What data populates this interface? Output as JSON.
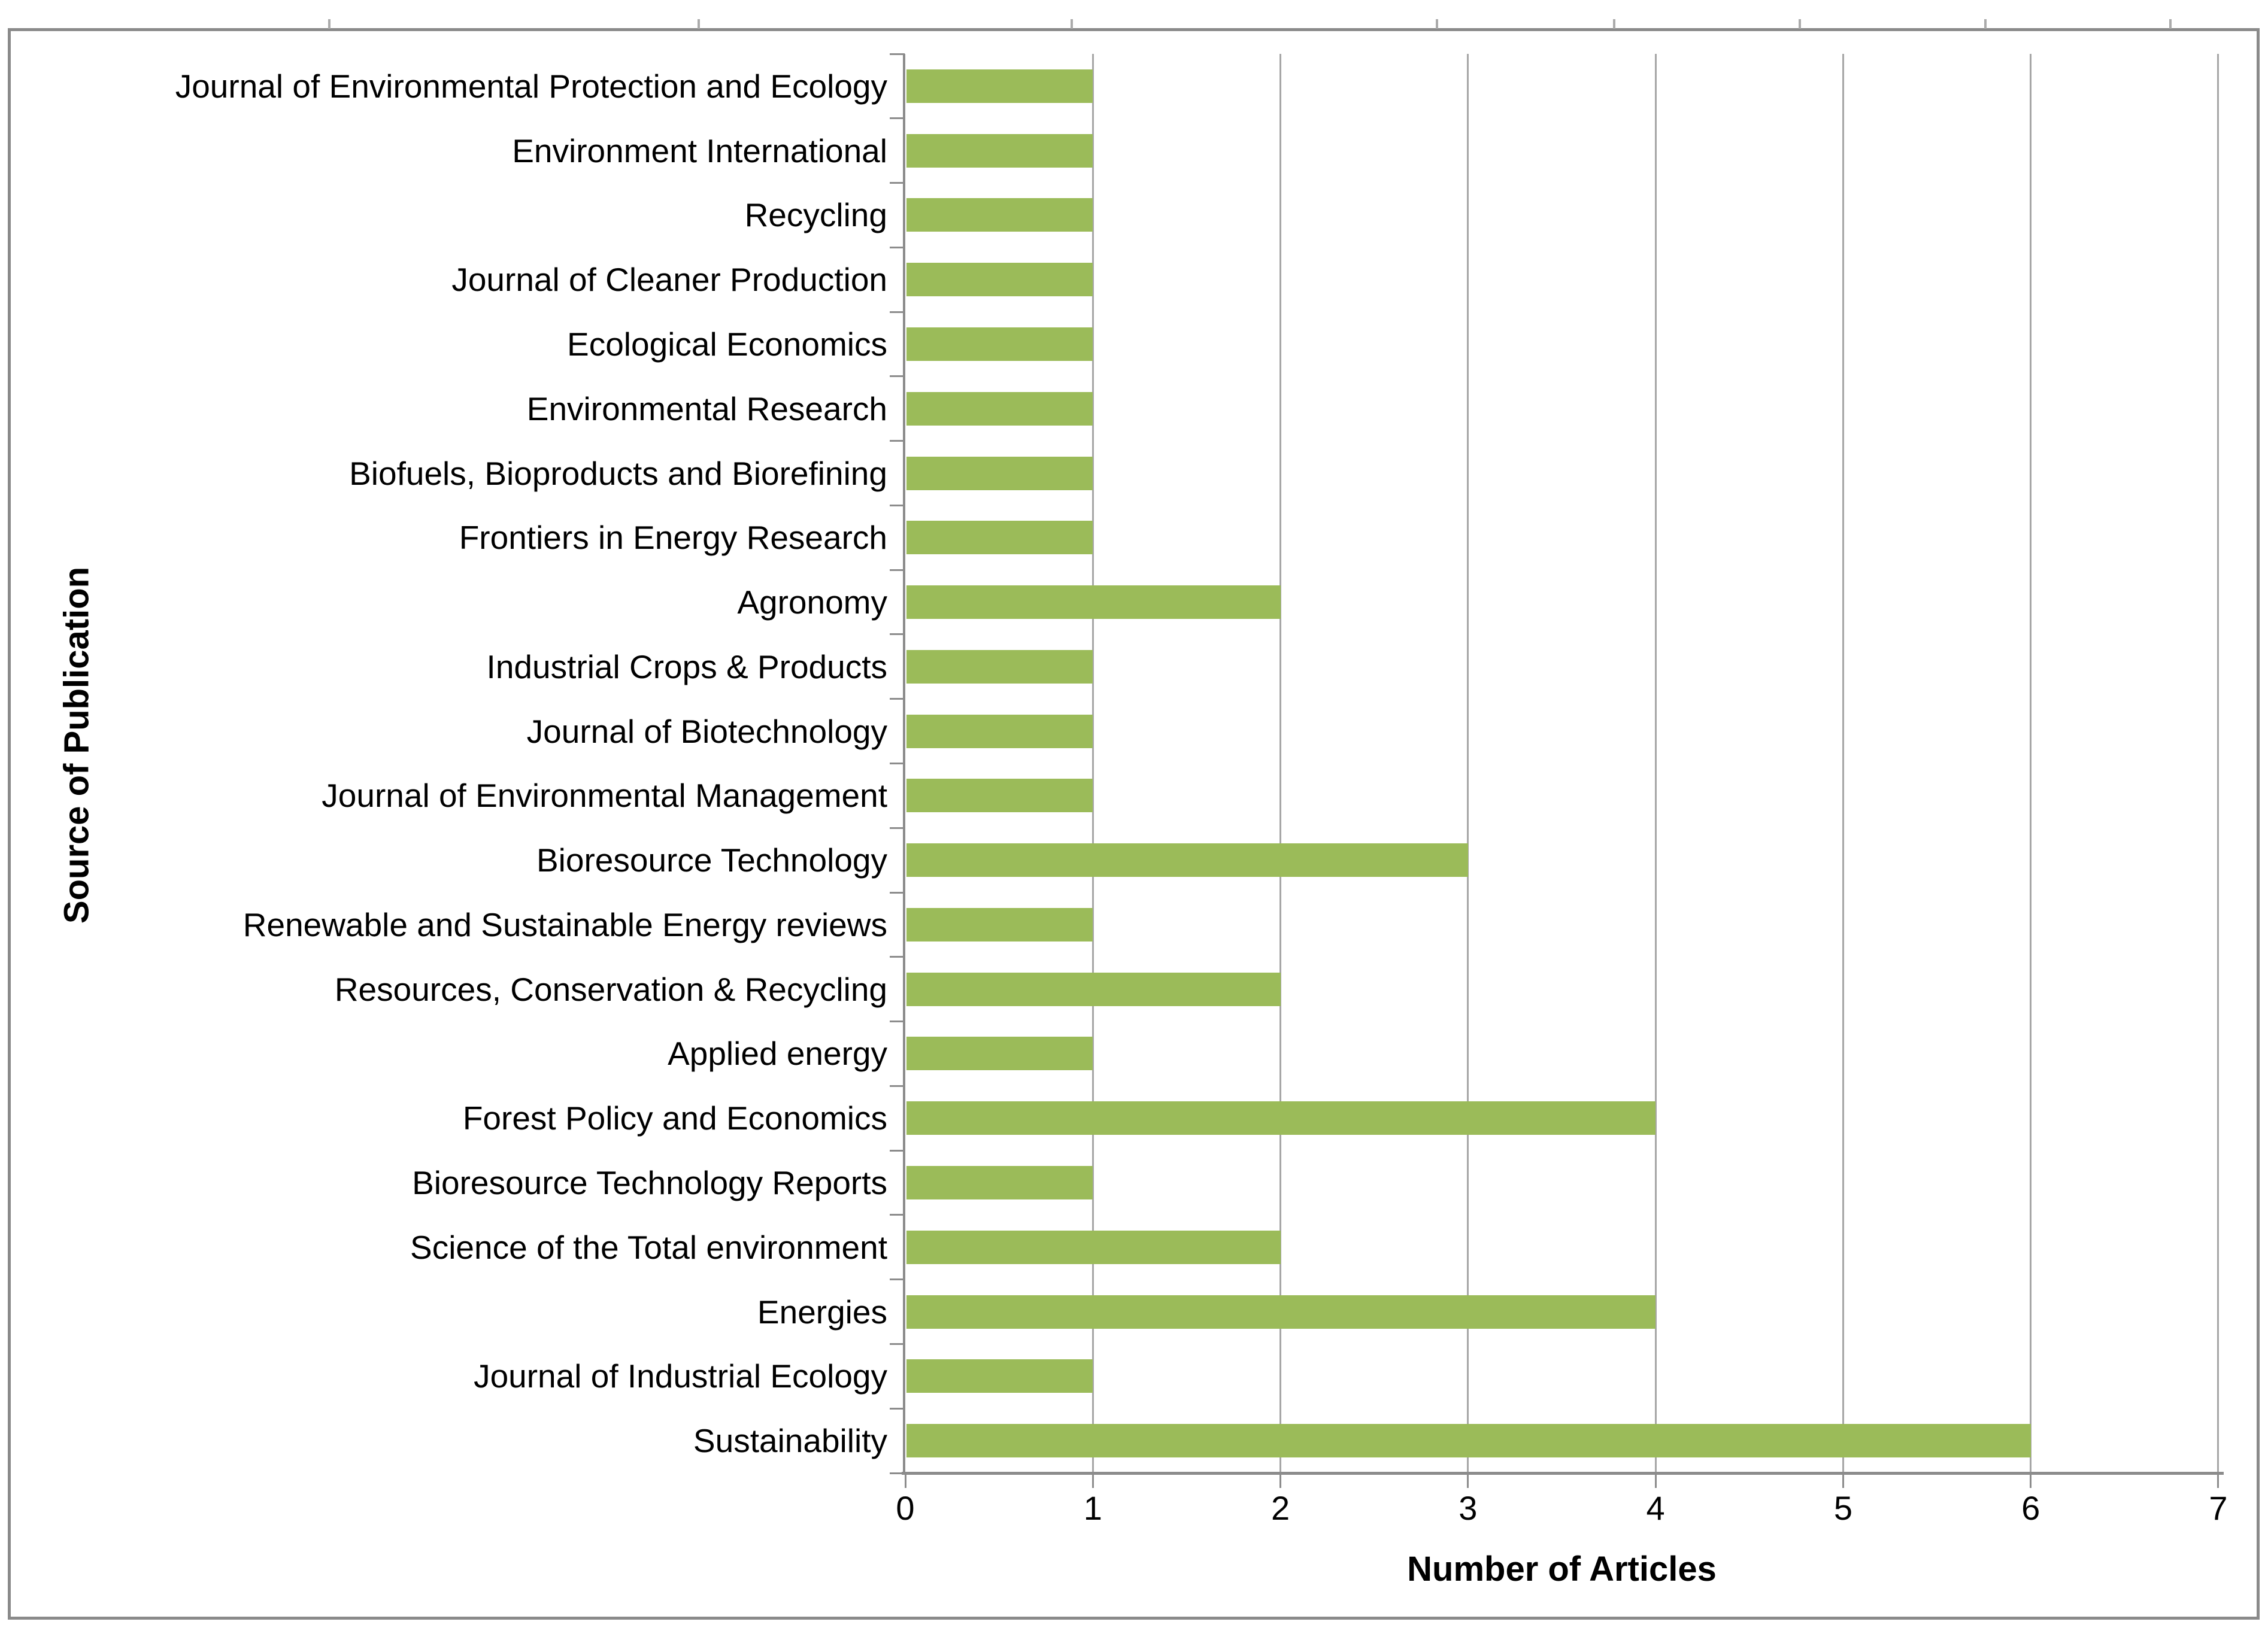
{
  "chart_data": {
    "type": "bar",
    "orientation": "horizontal",
    "title": "",
    "xlabel": "Number of Articles",
    "ylabel": "Source of Publication",
    "categories": [
      "Journal of Environmental Protection and Ecology",
      "Environment International",
      "Recycling",
      "Journal of Cleaner Production",
      "Ecological Economics",
      "Environmental Research",
      "Biofuels, Bioproducts and Biorefining",
      "Frontiers in Energy Research",
      "Agronomy",
      "Industrial Crops & Products",
      "Journal of Biotechnology",
      "Journal of Environmental Management",
      "Bioresource Technology",
      "Renewable and Sustainable Energy reviews",
      "Resources, Conservation & Recycling",
      "Applied energy",
      "Forest Policy and Economics",
      "Bioresource Technology Reports",
      "Science of the Total environment",
      "Energies",
      "Journal of Industrial Ecology",
      "Sustainability"
    ],
    "values": [
      1,
      1,
      1,
      1,
      1,
      1,
      1,
      1,
      2,
      1,
      1,
      1,
      3,
      1,
      2,
      1,
      4,
      1,
      2,
      4,
      1,
      6
    ],
    "xlim": [
      0,
      7
    ],
    "xticks": [
      "0",
      "1",
      "2",
      "3",
      "4",
      "5",
      "6",
      "7"
    ],
    "grid": true,
    "legend": false,
    "bar_color": "#9BBB59",
    "grid_color": "#A6A6A6",
    "axis_color": "#8C8C8C",
    "frame_color": "#8A8A8A",
    "background": "#FFFFFF"
  }
}
